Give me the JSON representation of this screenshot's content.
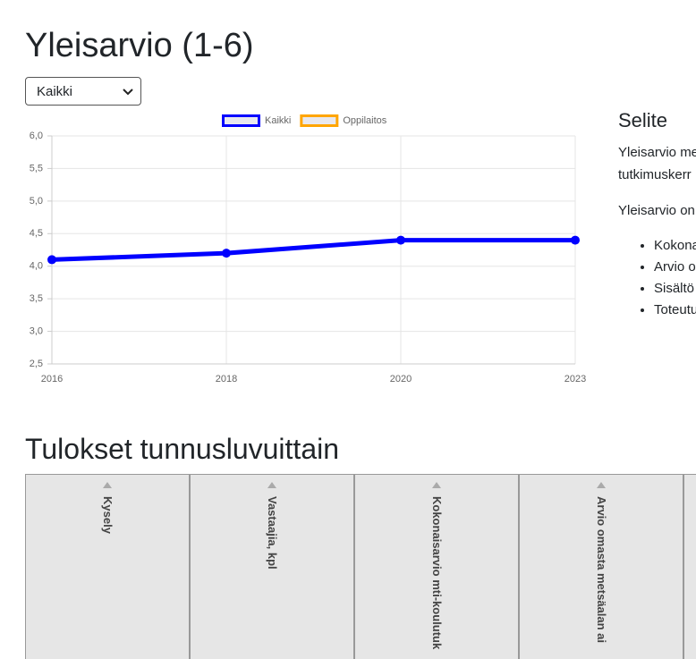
{
  "header": {
    "title": "Yleisarvio (1-6)"
  },
  "filter": {
    "selected": "Kaikki"
  },
  "chart_data": {
    "type": "line",
    "categories": [
      "2016",
      "2018",
      "2020",
      "2023"
    ],
    "series": [
      {
        "name": "Kaikki",
        "color": "#0000ff",
        "values": [
          4.1,
          4.2,
          4.4,
          4.4
        ]
      },
      {
        "name": "Oppilaitos",
        "color": "#ffa500",
        "values": [
          null,
          null,
          null,
          null
        ]
      }
    ],
    "ylim": [
      2.5,
      6
    ],
    "yticks": [
      {
        "value": 2.5,
        "label": "2,5"
      },
      {
        "value": 3,
        "label": "3,0"
      },
      {
        "value": 3.5,
        "label": "3,5"
      },
      {
        "value": 4,
        "label": "4,0"
      },
      {
        "value": 4.5,
        "label": "4,5"
      },
      {
        "value": 5,
        "label": "5,0"
      },
      {
        "value": 5.5,
        "label": "5,5"
      },
      {
        "value": 6,
        "label": "6,0"
      }
    ],
    "grid": true,
    "legend": "top"
  },
  "legend_text": {
    "title": "Selite",
    "paragraphs": [
      "Yleisarvio me",
      "tutkimuskerr",
      "Yleisarvio on"
    ],
    "items": [
      "Kokona",
      "Arvio o",
      "Sisältö",
      "Toteutu"
    ]
  },
  "results": {
    "title": "Tulokset tunnusluvuittain",
    "columns": [
      "Kysely",
      "Vastaajia, kpl",
      "Kokonaisarvio mti-koulutuk",
      "Arvio omasta metsäalan ai"
    ]
  }
}
